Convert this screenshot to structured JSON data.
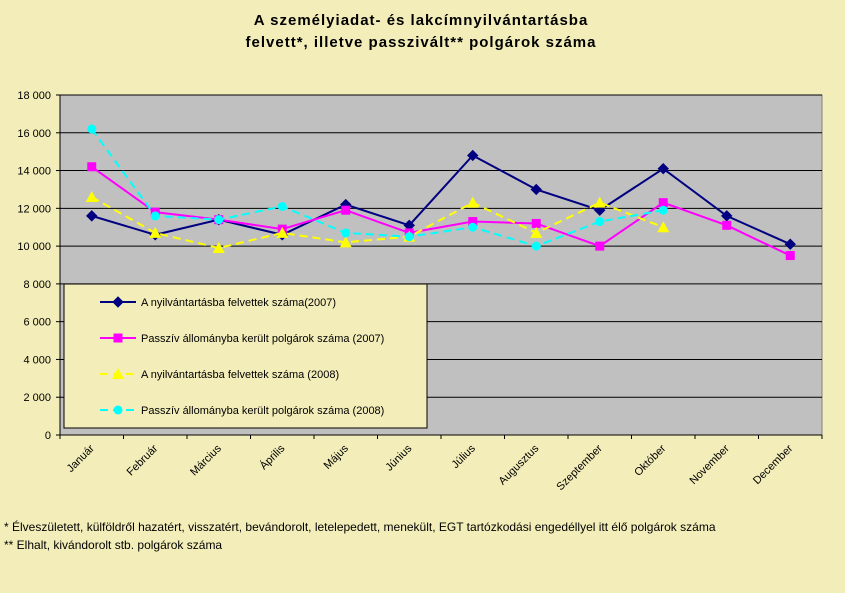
{
  "chart_data": {
    "type": "line",
    "title_lines": [
      "A személyiadat- és lakcímnyilvántartásba",
      "felvett*, illetve passzivált** polgárok száma"
    ],
    "categories": [
      "Január",
      "Február",
      "Március",
      "Április",
      "Május",
      "Június",
      "Július",
      "Augusztus",
      "Szeptember",
      "Október",
      "November",
      "December"
    ],
    "ylim": [
      0,
      18000
    ],
    "yticks": [
      0,
      2000,
      4000,
      6000,
      8000,
      10000,
      12000,
      14000,
      16000,
      18000
    ],
    "ytick_labels": [
      "0",
      "2 000",
      "4 000",
      "6 000",
      "8 000",
      "10 000",
      "12 000",
      "14 000",
      "16 000",
      "18 000"
    ],
    "grid": true,
    "legend_position": "bottom-left",
    "series": [
      {
        "name": "A nyilvántartásba felvettek száma(2007)",
        "color": "#000080",
        "marker": "diamond",
        "dash": false,
        "values": [
          11600,
          10600,
          11400,
          10600,
          12200,
          11100,
          14800,
          13000,
          11900,
          14100,
          11600,
          10100
        ]
      },
      {
        "name": "Passzív állományba került polgárok száma (2007)",
        "color": "#ff00ff",
        "marker": "square",
        "dash": false,
        "values": [
          14200,
          11800,
          11400,
          10900,
          11900,
          10700,
          11300,
          11200,
          10000,
          12300,
          11100,
          9500
        ]
      },
      {
        "name": "A nyilvántartásba felvettek száma (2008)",
        "color": "#ffff00",
        "marker": "triangle",
        "dash": true,
        "values": [
          12600,
          10700,
          9900,
          10700,
          10200,
          10500,
          12300,
          10700,
          12300,
          11000,
          null,
          null
        ]
      },
      {
        "name": "Passzív állományba került polgárok száma (2008)",
        "color": "#00ffff",
        "marker": "circle",
        "dash": true,
        "values": [
          16200,
          11600,
          11400,
          12100,
          10700,
          10500,
          11000,
          10000,
          11300,
          11900,
          null,
          null
        ]
      }
    ]
  },
  "footnotes": {
    "note1": " * Élveszületett, külföldről hazatért, visszatért, bevándorolt, letelepedett, menekült, EGT tartózkodási engedéllyel itt élő polgárok száma",
    "note2": "** Elhalt, kivándorolt stb. polgárok száma"
  }
}
